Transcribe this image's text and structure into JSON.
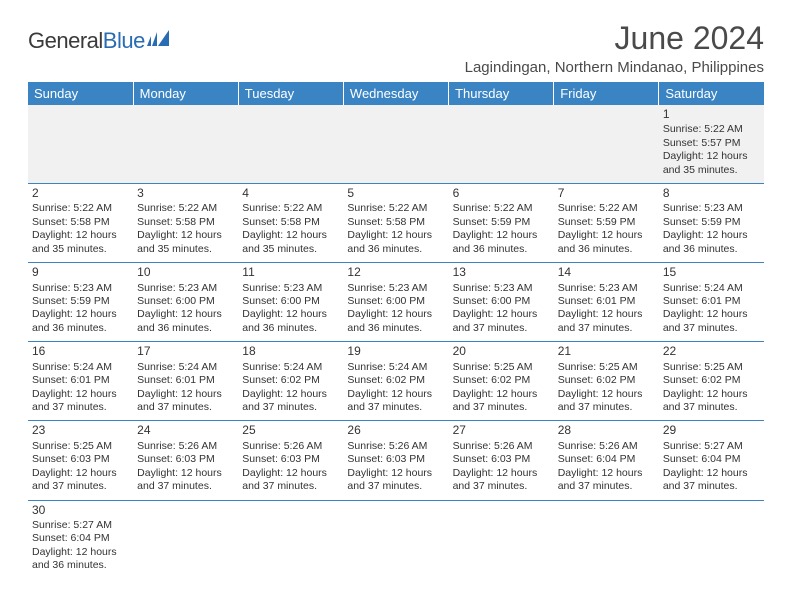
{
  "colors": {
    "header_bg": "#3b84c4",
    "header_text": "#ffffff",
    "row_divider": "#3b84c4",
    "blank_bg": "#f1f1f1",
    "body_text": "#333333",
    "title_text": "#4a4a4a",
    "logo_dark": "#3a3a3a",
    "logo_blue": "#2a6cb3"
  },
  "logo": {
    "text1": "General",
    "text2": "Blue"
  },
  "title": "June 2024",
  "location": "Lagindingan, Northern Mindanao, Philippines",
  "day_headers": [
    "Sunday",
    "Monday",
    "Tuesday",
    "Wednesday",
    "Thursday",
    "Friday",
    "Saturday"
  ],
  "weeks": [
    [
      null,
      null,
      null,
      null,
      null,
      null,
      {
        "n": "1",
        "sr": "Sunrise: 5:22 AM",
        "ss": "Sunset: 5:57 PM",
        "d1": "Daylight: 12 hours",
        "d2": "and 35 minutes."
      }
    ],
    [
      {
        "n": "2",
        "sr": "Sunrise: 5:22 AM",
        "ss": "Sunset: 5:58 PM",
        "d1": "Daylight: 12 hours",
        "d2": "and 35 minutes."
      },
      {
        "n": "3",
        "sr": "Sunrise: 5:22 AM",
        "ss": "Sunset: 5:58 PM",
        "d1": "Daylight: 12 hours",
        "d2": "and 35 minutes."
      },
      {
        "n": "4",
        "sr": "Sunrise: 5:22 AM",
        "ss": "Sunset: 5:58 PM",
        "d1": "Daylight: 12 hours",
        "d2": "and 35 minutes."
      },
      {
        "n": "5",
        "sr": "Sunrise: 5:22 AM",
        "ss": "Sunset: 5:58 PM",
        "d1": "Daylight: 12 hours",
        "d2": "and 36 minutes."
      },
      {
        "n": "6",
        "sr": "Sunrise: 5:22 AM",
        "ss": "Sunset: 5:59 PM",
        "d1": "Daylight: 12 hours",
        "d2": "and 36 minutes."
      },
      {
        "n": "7",
        "sr": "Sunrise: 5:22 AM",
        "ss": "Sunset: 5:59 PM",
        "d1": "Daylight: 12 hours",
        "d2": "and 36 minutes."
      },
      {
        "n": "8",
        "sr": "Sunrise: 5:23 AM",
        "ss": "Sunset: 5:59 PM",
        "d1": "Daylight: 12 hours",
        "d2": "and 36 minutes."
      }
    ],
    [
      {
        "n": "9",
        "sr": "Sunrise: 5:23 AM",
        "ss": "Sunset: 5:59 PM",
        "d1": "Daylight: 12 hours",
        "d2": "and 36 minutes."
      },
      {
        "n": "10",
        "sr": "Sunrise: 5:23 AM",
        "ss": "Sunset: 6:00 PM",
        "d1": "Daylight: 12 hours",
        "d2": "and 36 minutes."
      },
      {
        "n": "11",
        "sr": "Sunrise: 5:23 AM",
        "ss": "Sunset: 6:00 PM",
        "d1": "Daylight: 12 hours",
        "d2": "and 36 minutes."
      },
      {
        "n": "12",
        "sr": "Sunrise: 5:23 AM",
        "ss": "Sunset: 6:00 PM",
        "d1": "Daylight: 12 hours",
        "d2": "and 36 minutes."
      },
      {
        "n": "13",
        "sr": "Sunrise: 5:23 AM",
        "ss": "Sunset: 6:00 PM",
        "d1": "Daylight: 12 hours",
        "d2": "and 37 minutes."
      },
      {
        "n": "14",
        "sr": "Sunrise: 5:23 AM",
        "ss": "Sunset: 6:01 PM",
        "d1": "Daylight: 12 hours",
        "d2": "and 37 minutes."
      },
      {
        "n": "15",
        "sr": "Sunrise: 5:24 AM",
        "ss": "Sunset: 6:01 PM",
        "d1": "Daylight: 12 hours",
        "d2": "and 37 minutes."
      }
    ],
    [
      {
        "n": "16",
        "sr": "Sunrise: 5:24 AM",
        "ss": "Sunset: 6:01 PM",
        "d1": "Daylight: 12 hours",
        "d2": "and 37 minutes."
      },
      {
        "n": "17",
        "sr": "Sunrise: 5:24 AM",
        "ss": "Sunset: 6:01 PM",
        "d1": "Daylight: 12 hours",
        "d2": "and 37 minutes."
      },
      {
        "n": "18",
        "sr": "Sunrise: 5:24 AM",
        "ss": "Sunset: 6:02 PM",
        "d1": "Daylight: 12 hours",
        "d2": "and 37 minutes."
      },
      {
        "n": "19",
        "sr": "Sunrise: 5:24 AM",
        "ss": "Sunset: 6:02 PM",
        "d1": "Daylight: 12 hours",
        "d2": "and 37 minutes."
      },
      {
        "n": "20",
        "sr": "Sunrise: 5:25 AM",
        "ss": "Sunset: 6:02 PM",
        "d1": "Daylight: 12 hours",
        "d2": "and 37 minutes."
      },
      {
        "n": "21",
        "sr": "Sunrise: 5:25 AM",
        "ss": "Sunset: 6:02 PM",
        "d1": "Daylight: 12 hours",
        "d2": "and 37 minutes."
      },
      {
        "n": "22",
        "sr": "Sunrise: 5:25 AM",
        "ss": "Sunset: 6:02 PM",
        "d1": "Daylight: 12 hours",
        "d2": "and 37 minutes."
      }
    ],
    [
      {
        "n": "23",
        "sr": "Sunrise: 5:25 AM",
        "ss": "Sunset: 6:03 PM",
        "d1": "Daylight: 12 hours",
        "d2": "and 37 minutes."
      },
      {
        "n": "24",
        "sr": "Sunrise: 5:26 AM",
        "ss": "Sunset: 6:03 PM",
        "d1": "Daylight: 12 hours",
        "d2": "and 37 minutes."
      },
      {
        "n": "25",
        "sr": "Sunrise: 5:26 AM",
        "ss": "Sunset: 6:03 PM",
        "d1": "Daylight: 12 hours",
        "d2": "and 37 minutes."
      },
      {
        "n": "26",
        "sr": "Sunrise: 5:26 AM",
        "ss": "Sunset: 6:03 PM",
        "d1": "Daylight: 12 hours",
        "d2": "and 37 minutes."
      },
      {
        "n": "27",
        "sr": "Sunrise: 5:26 AM",
        "ss": "Sunset: 6:03 PM",
        "d1": "Daylight: 12 hours",
        "d2": "and 37 minutes."
      },
      {
        "n": "28",
        "sr": "Sunrise: 5:26 AM",
        "ss": "Sunset: 6:04 PM",
        "d1": "Daylight: 12 hours",
        "d2": "and 37 minutes."
      },
      {
        "n": "29",
        "sr": "Sunrise: 5:27 AM",
        "ss": "Sunset: 6:04 PM",
        "d1": "Daylight: 12 hours",
        "d2": "and 37 minutes."
      }
    ],
    [
      {
        "n": "30",
        "sr": "Sunrise: 5:27 AM",
        "ss": "Sunset: 6:04 PM",
        "d1": "Daylight: 12 hours",
        "d2": "and 36 minutes."
      },
      null,
      null,
      null,
      null,
      null,
      null
    ]
  ]
}
